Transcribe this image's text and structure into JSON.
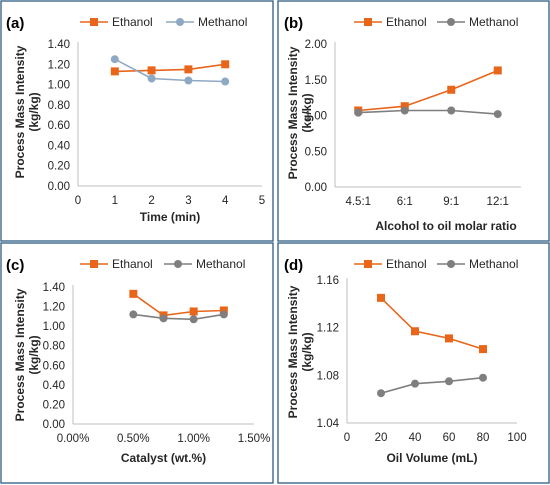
{
  "colors": {
    "ethanol": "#e8651a",
    "methanol_a": "#8ea9c4",
    "methanol": "#7f7f7f",
    "border": "#2e5d83"
  },
  "chart_data": [
    {
      "panel": "(a)",
      "type": "line",
      "xlabel": "Time (min)",
      "ylabel": "Process Mass Intensity (kg/kg)",
      "xlim": [
        0,
        5
      ],
      "ylim": [
        0,
        1.4
      ],
      "xticks": [
        0,
        1,
        2,
        3,
        4,
        5
      ],
      "yticks": [
        0,
        0.2,
        0.4,
        0.6,
        0.8,
        1.0,
        1.2,
        1.4
      ],
      "xtick_labels": [
        "0",
        "1",
        "2",
        "3",
        "4",
        "5"
      ],
      "ytick_labels": [
        "0.00",
        "0.20",
        "0.40",
        "0.60",
        "0.80",
        "1.00",
        "1.20",
        "1.40"
      ],
      "legend": "top",
      "series": [
        {
          "name": "Ethanol",
          "marker": "square",
          "color": "#e8651a",
          "x": [
            1,
            2,
            3,
            4
          ],
          "y": [
            1.13,
            1.14,
            1.15,
            1.2
          ]
        },
        {
          "name": "Methanol",
          "marker": "circle",
          "color": "#8ea9c4",
          "x": [
            1,
            2,
            3,
            4
          ],
          "y": [
            1.25,
            1.06,
            1.04,
            1.03
          ]
        }
      ]
    },
    {
      "panel": "(b)",
      "type": "line",
      "xlabel": "Alcohol to oil molar ratio",
      "ylabel": "Process Mass Intensity (kg/kg)",
      "categories": [
        "4.5:1",
        "6:1",
        "9:1",
        "12:1"
      ],
      "ylim": [
        0,
        2
      ],
      "yticks": [
        0,
        0.5,
        1.0,
        1.5,
        2.0
      ],
      "ytick_labels": [
        "0.00",
        "0.50",
        "1.00",
        "1.50",
        "2.00"
      ],
      "legend": "top",
      "series": [
        {
          "name": "Ethanol",
          "marker": "square",
          "color": "#e8651a",
          "values": [
            1.07,
            1.13,
            1.36,
            1.63
          ]
        },
        {
          "name": "Methanol",
          "marker": "circle",
          "color": "#7f7f7f",
          "values": [
            1.04,
            1.07,
            1.07,
            1.02
          ]
        }
      ]
    },
    {
      "panel": "(c)",
      "type": "line",
      "xlabel": "Catalyst (wt.%)",
      "ylabel": "Process Mass Intensity (kg/kg)",
      "xlim": [
        0,
        1.5
      ],
      "ylim": [
        0,
        1.4
      ],
      "xticks": [
        0,
        0.5,
        1.0,
        1.5
      ],
      "yticks": [
        0,
        0.2,
        0.4,
        0.6,
        0.8,
        1.0,
        1.2,
        1.4
      ],
      "xtick_labels": [
        "0.00%",
        "0.50%",
        "1.00%",
        "1.50%"
      ],
      "ytick_labels": [
        "0.00",
        "0.20",
        "0.40",
        "0.60",
        "0.80",
        "1.00",
        "1.20",
        "1.40"
      ],
      "legend": "top",
      "series": [
        {
          "name": "Ethanol",
          "marker": "square",
          "color": "#e8651a",
          "x": [
            0.5,
            0.75,
            1.0,
            1.25
          ],
          "y": [
            1.33,
            1.11,
            1.15,
            1.16
          ]
        },
        {
          "name": "Methanol",
          "marker": "circle",
          "color": "#7f7f7f",
          "x": [
            0.5,
            0.75,
            1.0,
            1.25
          ],
          "y": [
            1.12,
            1.08,
            1.07,
            1.12
          ]
        }
      ]
    },
    {
      "panel": "(d)",
      "type": "line",
      "xlabel": "Oil Volume (mL)",
      "ylabel": "Process Mass Intensity (kg/kg)",
      "xlim": [
        0,
        100
      ],
      "ylim": [
        1.04,
        1.16
      ],
      "xticks": [
        0,
        20,
        40,
        60,
        80,
        100
      ],
      "yticks": [
        1.04,
        1.08,
        1.12,
        1.16
      ],
      "xtick_labels": [
        "0",
        "20",
        "40",
        "60",
        "80",
        "100"
      ],
      "ytick_labels": [
        "1.04",
        "1.08",
        "1.12",
        "1.16"
      ],
      "legend": "top",
      "series": [
        {
          "name": "Ethanol",
          "marker": "square",
          "color": "#e8651a",
          "x": [
            20,
            40,
            60,
            80
          ],
          "y": [
            1.145,
            1.117,
            1.111,
            1.102
          ]
        },
        {
          "name": "Methanol",
          "marker": "circle",
          "color": "#7f7f7f",
          "x": [
            20,
            40,
            60,
            80
          ],
          "y": [
            1.065,
            1.073,
            1.075,
            1.078
          ]
        }
      ]
    }
  ]
}
